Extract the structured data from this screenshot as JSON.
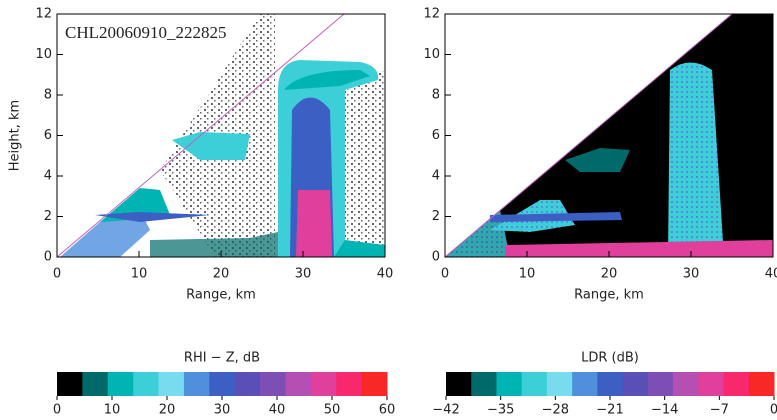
{
  "chart_data": [
    {
      "type": "heatmap",
      "annotation": "CHL20060910_222825",
      "x_label": "Range, km",
      "y_label": "Height, km",
      "xlim": [
        0,
        40
      ],
      "ylim": [
        0,
        12
      ],
      "xticks": [
        0,
        10,
        20,
        30,
        40
      ],
      "yticks": [
        0,
        2,
        4,
        6,
        8,
        10,
        12
      ],
      "colorbar": {
        "label": "RHI − Z, dB",
        "lim": [
          0,
          60
        ],
        "ticks": [
          0,
          10,
          20,
          30,
          40,
          50,
          60
        ],
        "colors": [
          "#000000",
          "#006a6a",
          "#00b4b4",
          "#3ccfd8",
          "#78dcee",
          "#4f8fdc",
          "#3c5fc4",
          "#5a4fb4",
          "#7d4fb4",
          "#b44fb4",
          "#e0409c",
          "#f8286c",
          "#f82828"
        ]
      }
    },
    {
      "type": "heatmap",
      "x_label": "Range, km",
      "xlim": [
        0,
        40
      ],
      "ylim": [
        0,
        12
      ],
      "xticks": [
        0,
        10,
        20,
        30,
        40
      ],
      "yticks": [
        0,
        2,
        4,
        6,
        8,
        10,
        12
      ],
      "colorbar": {
        "label": "LDR (dB)",
        "lim": [
          -42,
          0
        ],
        "ticks": [
          {
            "value": -42,
            "label": "−42"
          },
          {
            "value": -35,
            "label": "−35"
          },
          {
            "value": -28,
            "label": "−28"
          },
          {
            "value": -21,
            "label": "−21"
          },
          {
            "value": -14,
            "label": "−14"
          },
          {
            "value": -7,
            "label": "−7"
          },
          0
        ],
        "colors": [
          "#000000",
          "#006a6a",
          "#00b4b4",
          "#3ccfd8",
          "#78dcee",
          "#4f8fdc",
          "#3c5fc4",
          "#5a4fb4",
          "#7d4fb4",
          "#b44fb4",
          "#e0409c",
          "#f8286c",
          "#f82828"
        ]
      }
    }
  ]
}
